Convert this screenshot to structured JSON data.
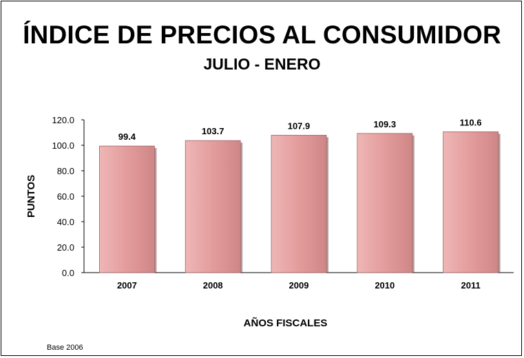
{
  "chart_data": {
    "type": "bar",
    "title": "ÍNDICE DE PRECIOS AL CONSUMIDOR",
    "subtitle": "JULIO - ENERO",
    "xlabel": "AÑOS FISCALES",
    "ylabel": "PUNTOS",
    "categories": [
      "2007",
      "2008",
      "2009",
      "2010",
      "2011"
    ],
    "values": [
      99.4,
      103.7,
      107.9,
      109.3,
      110.6
    ],
    "data_labels": [
      "99.4",
      "103.7",
      "107.9",
      "109.3",
      "110.6"
    ],
    "ylim": [
      0,
      120
    ],
    "yticks": [
      "0.0",
      "20.0",
      "40.0",
      "60.0",
      "80.0",
      "100.0",
      "120.0"
    ],
    "bar_color": "#e29a9a",
    "grid": false,
    "legend": "none",
    "note": "Base 2006"
  }
}
